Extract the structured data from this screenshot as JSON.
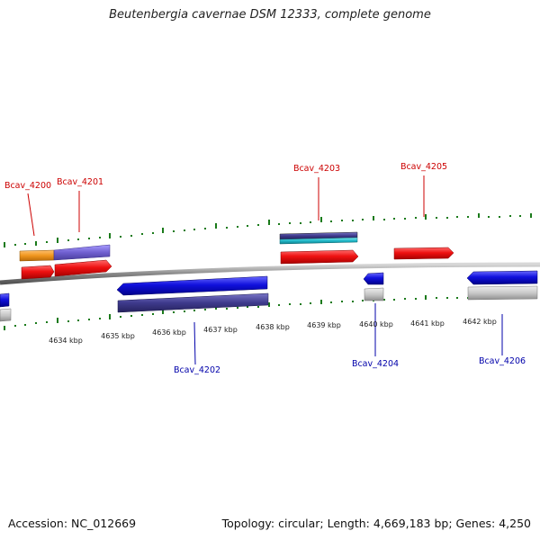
{
  "title": "Beutenbergia cavernae DSM 12333, complete genome",
  "footer": {
    "accession": "Accession: NC_012669",
    "summary": "Topology: circular; Length: 4,669,183 bp; Genes: 4,250"
  },
  "colors": {
    "forward_label": "#cc0000",
    "reverse_label": "#0000aa",
    "tick_green": "#1a7a1a",
    "backbone": "#8a8a8a",
    "red_gene": "#ee1111",
    "blue_gene": "#1111dd",
    "orange_gene": "#f0961e",
    "purple_gene": "#7060d0",
    "navy_gene": "#3e3a8c",
    "cyan_gene": "#20b8c8",
    "gray_gene": "#c4c4c4"
  },
  "scale_labels": [
    {
      "text": "4634 kbp",
      "id": "4634"
    },
    {
      "text": "4635 kbp",
      "id": "4635"
    },
    {
      "text": "4636 kbp",
      "id": "4636"
    },
    {
      "text": "4637 kbp",
      "id": "4637"
    },
    {
      "text": "4638 kbp",
      "id": "4638"
    },
    {
      "text": "4639 kbp",
      "id": "4639"
    },
    {
      "text": "4640 kbp",
      "id": "4640"
    },
    {
      "text": "4641 kbp",
      "id": "4641"
    },
    {
      "text": "4642 kbp",
      "id": "4642"
    }
  ],
  "gene_labels": {
    "bcav_4200": "Bcav_4200",
    "bcav_4201": "Bcav_4201",
    "bcav_4202": "Bcav_4202",
    "bcav_4203": "Bcav_4203",
    "bcav_4204": "Bcav_4204",
    "bcav_4205": "Bcav_4205",
    "bcav_4206": "Bcav_4206"
  }
}
